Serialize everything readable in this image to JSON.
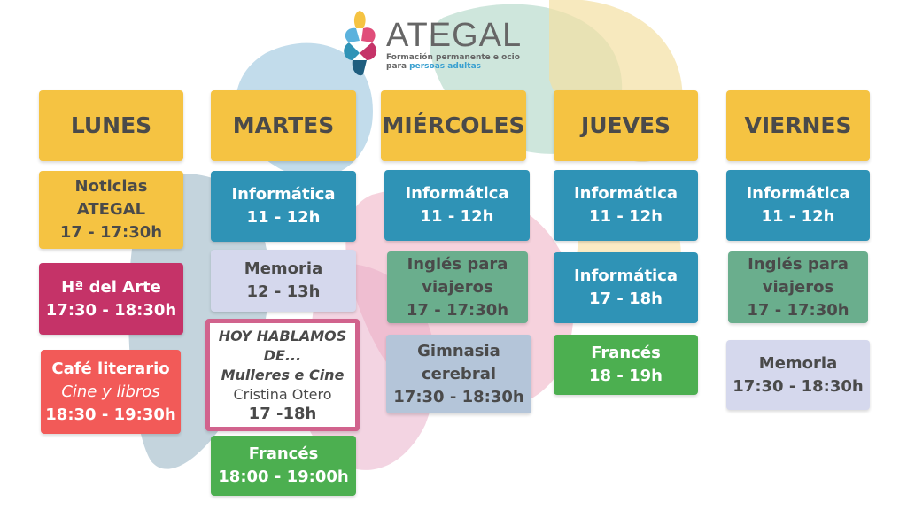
{
  "logo": {
    "name": "ATEGAL",
    "tagline_1": "Formación permanente e ocio",
    "tagline_2a": "para",
    "tagline_2b": "persoas adultas"
  },
  "days": [
    "LUNES",
    "MARTES",
    "MIÉRCOLES",
    "JUEVES",
    "VIERNES"
  ],
  "lunes": [
    {
      "title": "Noticias",
      "sub": "ATEGAL",
      "time": "17 - 17:30h"
    },
    {
      "title": "Hª del Arte",
      "time": "17:30 - 18:30h"
    },
    {
      "title": "Café literario",
      "sub": "Cine y libros",
      "time": "18:30 - 19:30h"
    }
  ],
  "martes": [
    {
      "title": "Informática",
      "time": "11 - 12h"
    },
    {
      "title": "Memoria",
      "time": "12 - 13h"
    },
    {
      "title": "HOY HABLAMOS DE...",
      "sub": "Mulleres e Cine",
      "speaker": "Cristina Otero",
      "time": "17 -18h"
    },
    {
      "title": "Francés",
      "time": "18:00 - 19:00h"
    }
  ],
  "miercoles": [
    {
      "title": "Informática",
      "time": "11 - 12h"
    },
    {
      "title": "Inglés para",
      "sub": "viajeros",
      "time": "17 - 17:30h"
    },
    {
      "title": "Gimnasia",
      "sub": "cerebral",
      "time": "17:30 - 18:30h"
    }
  ],
  "jueves": [
    {
      "title": "Informática",
      "time": "11 - 12h"
    },
    {
      "title": "Informática",
      "time": "17 - 18h"
    },
    {
      "title": "Francés",
      "time": "18 - 19h"
    }
  ],
  "viernes": [
    {
      "title": "Informática",
      "time": "11 - 12h"
    },
    {
      "title": "Inglés para",
      "sub": "viajeros",
      "time": "17 - 17:30h"
    },
    {
      "title": "Memoria",
      "time": "17:30 - 18:30h"
    }
  ],
  "colors": {
    "header": "#f5c342",
    "blue": "#2f93b6",
    "lavender": "#d5d8ed",
    "pink": "#c53368",
    "red": "#f25a58",
    "green": "#4caf50",
    "teal": "#6aae8d",
    "slate": "#b4c5d9"
  }
}
